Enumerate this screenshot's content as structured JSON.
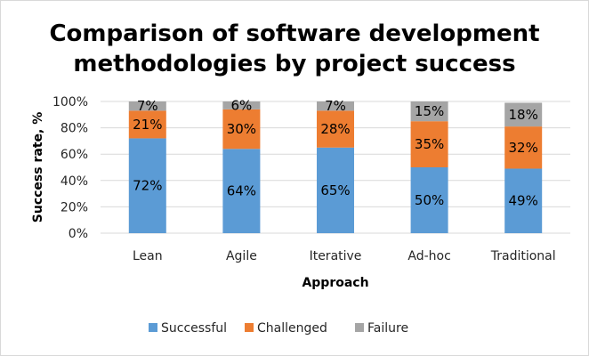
{
  "chart_data": {
    "type": "bar",
    "stacked": true,
    "title_lines": [
      "Comparison of software development",
      "methodologies by project success"
    ],
    "categories": [
      "Lean",
      "Agile",
      "Iterative",
      "Ad-hoc",
      "Traditional"
    ],
    "series": [
      {
        "name": "Successful",
        "color": "#5b9bd5",
        "values": [
          72,
          64,
          65,
          50,
          49
        ],
        "labels": [
          "72%",
          "64%",
          "65%",
          "50%",
          "49%"
        ]
      },
      {
        "name": "Challenged",
        "color": "#ed7d31",
        "values": [
          21,
          30,
          28,
          35,
          32
        ],
        "labels": [
          "21%",
          "30%",
          "28%",
          "35%",
          "32%"
        ]
      },
      {
        "name": "Failure",
        "color": "#a5a5a5",
        "values": [
          7,
          6,
          7,
          15,
          18
        ],
        "labels": [
          "7%",
          "6%",
          "7%",
          "15%",
          "18%"
        ]
      }
    ],
    "xlabel": "Approach",
    "ylabel": "Success rate, %",
    "ylim": [
      0,
      100
    ],
    "yticks": [
      0,
      20,
      40,
      60,
      80,
      100
    ],
    "ytick_labels": [
      "0%",
      "20%",
      "40%",
      "60%",
      "80%",
      "100%"
    ],
    "grid": true,
    "legend": "bottom"
  }
}
